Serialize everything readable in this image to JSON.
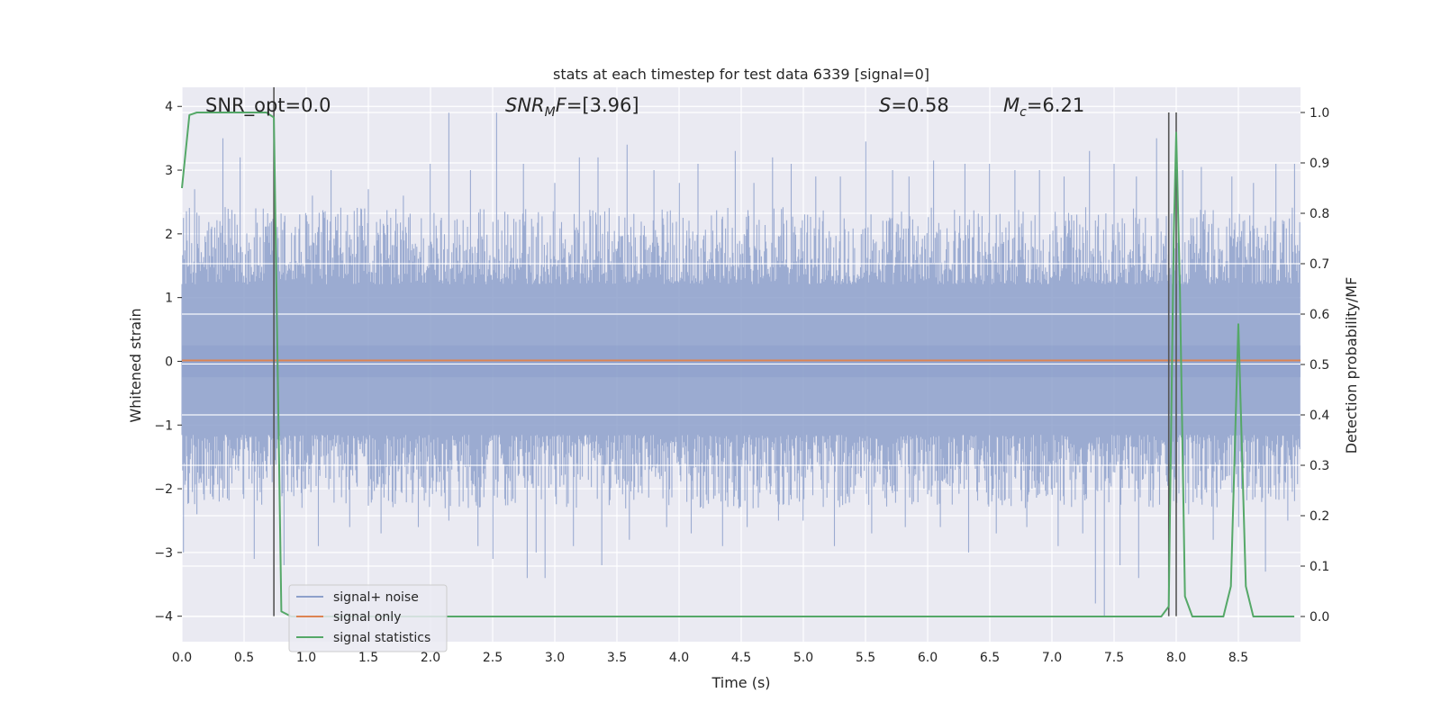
{
  "chart_data": {
    "type": "line",
    "title": "stats at each timestep for test data 6339 [signal=0]",
    "xlabel": "Time (s)",
    "ylabel_left": "Whitened strain",
    "ylabel_right": "Detection probability/MF",
    "xlim": [
      0,
      9.0
    ],
    "ylim_left": [
      -4.4,
      4.3
    ],
    "ylim_right": [
      -0.05,
      1.05
    ],
    "x_ticks": [
      "0.0",
      "0.5",
      "1.0",
      "1.5",
      "2.0",
      "2.5",
      "3.0",
      "3.5",
      "4.0",
      "4.5",
      "5.0",
      "5.5",
      "6.0",
      "6.5",
      "7.0",
      "7.5",
      "8.0",
      "8.5"
    ],
    "y_left_ticks": [
      "−4",
      "−3",
      "−2",
      "−1",
      "0",
      "1",
      "2",
      "3",
      "4"
    ],
    "y_right_ticks": [
      "0.0",
      "0.1",
      "0.2",
      "0.3",
      "0.4",
      "0.5",
      "0.6",
      "0.7",
      "0.8",
      "0.9",
      "1.0"
    ],
    "grid": true,
    "legend_position": "lower-left",
    "annotations": {
      "snr_opt": "SNR_opt=0.0",
      "snr_mf": "=[3.96]",
      "s_value": "=0.58",
      "mc_value": "=6.21"
    },
    "markers_x": [
      0.74,
      7.94,
      8.0
    ],
    "series": [
      {
        "name": "signal+ noise",
        "axis": "left",
        "color": "#8da0cb",
        "envelope_upper_typical": 2.2,
        "envelope_lower_typical": -2.1,
        "peaks_upper": [
          [
            0.1,
            2.7
          ],
          [
            0.33,
            3.5
          ],
          [
            0.47,
            3.2
          ],
          [
            0.75,
            2.9
          ],
          [
            1.05,
            2.6
          ],
          [
            1.2,
            3.0
          ],
          [
            1.5,
            2.7
          ],
          [
            1.78,
            2.6
          ],
          [
            2.0,
            3.1
          ],
          [
            2.15,
            3.9
          ],
          [
            2.32,
            3.0
          ],
          [
            2.53,
            3.9
          ],
          [
            2.75,
            3.1
          ],
          [
            3.0,
            2.8
          ],
          [
            3.2,
            3.2
          ],
          [
            3.35,
            3.2
          ],
          [
            3.58,
            3.4
          ],
          [
            3.8,
            3.0
          ],
          [
            4.0,
            2.8
          ],
          [
            4.15,
            3.1
          ],
          [
            4.45,
            3.3
          ],
          [
            4.6,
            2.8
          ],
          [
            4.75,
            3.2
          ],
          [
            4.9,
            3.1
          ],
          [
            5.1,
            2.9
          ],
          [
            5.3,
            2.9
          ],
          [
            5.5,
            3.45
          ],
          [
            5.72,
            3.0
          ],
          [
            5.85,
            2.9
          ],
          [
            6.05,
            3.15
          ],
          [
            6.3,
            3.1
          ],
          [
            6.5,
            3.1
          ],
          [
            6.7,
            3.0
          ],
          [
            6.9,
            3.0
          ],
          [
            7.1,
            2.9
          ],
          [
            7.3,
            3.3
          ],
          [
            7.5,
            3.1
          ],
          [
            7.68,
            2.9
          ],
          [
            7.84,
            3.5
          ],
          [
            8.05,
            3.0
          ],
          [
            8.2,
            3.05
          ],
          [
            8.45,
            2.9
          ],
          [
            8.62,
            2.8
          ],
          [
            8.8,
            3.1
          ],
          [
            8.95,
            3.1
          ]
        ],
        "peaks_lower": [
          [
            0.01,
            -3.0
          ],
          [
            0.12,
            -2.4
          ],
          [
            0.3,
            -2.2
          ],
          [
            0.58,
            -3.1
          ],
          [
            0.82,
            -3.2
          ],
          [
            1.1,
            -2.9
          ],
          [
            1.35,
            -2.6
          ],
          [
            1.6,
            -2.7
          ],
          [
            1.9,
            -2.6
          ],
          [
            2.15,
            -2.5
          ],
          [
            2.38,
            -2.9
          ],
          [
            2.5,
            -3.1
          ],
          [
            2.78,
            -3.4
          ],
          [
            2.85,
            -3.0
          ],
          [
            2.92,
            -3.4
          ],
          [
            3.15,
            -2.9
          ],
          [
            3.38,
            -3.2
          ],
          [
            3.6,
            -2.8
          ],
          [
            3.9,
            -2.6
          ],
          [
            4.1,
            -2.7
          ],
          [
            4.35,
            -2.9
          ],
          [
            4.55,
            -2.6
          ],
          [
            4.8,
            -2.5
          ],
          [
            5.0,
            -2.5
          ],
          [
            5.25,
            -2.9
          ],
          [
            5.55,
            -2.7
          ],
          [
            5.82,
            -2.6
          ],
          [
            6.1,
            -2.6
          ],
          [
            6.33,
            -3.0
          ],
          [
            6.55,
            -2.7
          ],
          [
            6.8,
            -2.6
          ],
          [
            7.05,
            -2.9
          ],
          [
            7.25,
            -2.7
          ],
          [
            7.35,
            -3.8
          ],
          [
            7.42,
            -4.0
          ],
          [
            7.55,
            -3.2
          ],
          [
            7.7,
            -3.4
          ],
          [
            8.1,
            -2.4
          ],
          [
            8.3,
            -2.8
          ],
          [
            8.5,
            -2.6
          ],
          [
            8.72,
            -3.3
          ],
          [
            8.9,
            -2.5
          ]
        ]
      },
      {
        "name": "signal only",
        "axis": "left",
        "color": "#dd8452",
        "x": [
          0.0,
          9.0
        ],
        "y": [
          0.0,
          0.0
        ]
      },
      {
        "name": "signal statistics",
        "axis": "right",
        "color": "#55a868",
        "x": [
          0.0,
          0.06,
          0.12,
          0.2,
          0.3,
          0.4,
          0.5,
          0.6,
          0.68,
          0.74,
          0.8,
          0.88,
          1.0,
          1.5,
          2.0,
          3.0,
          4.0,
          5.0,
          6.0,
          7.0,
          7.5,
          7.88,
          7.94,
          7.98,
          8.0,
          8.03,
          8.07,
          8.13,
          8.2,
          8.3,
          8.38,
          8.44,
          8.5,
          8.56,
          8.62,
          8.7,
          8.8,
          8.95
        ],
        "y": [
          0.85,
          0.995,
          1.0,
          1.0,
          1.0,
          1.0,
          1.0,
          1.0,
          1.0,
          0.99,
          0.01,
          0.0,
          0.0,
          0.0,
          0.0,
          0.0,
          0.0,
          0.0,
          0.0,
          0.0,
          0.0,
          0.0,
          0.02,
          0.75,
          0.96,
          0.65,
          0.04,
          0.0,
          0.0,
          0.0,
          0.0,
          0.06,
          0.58,
          0.06,
          0.0,
          0.0,
          0.0,
          0.0
        ]
      }
    ]
  }
}
